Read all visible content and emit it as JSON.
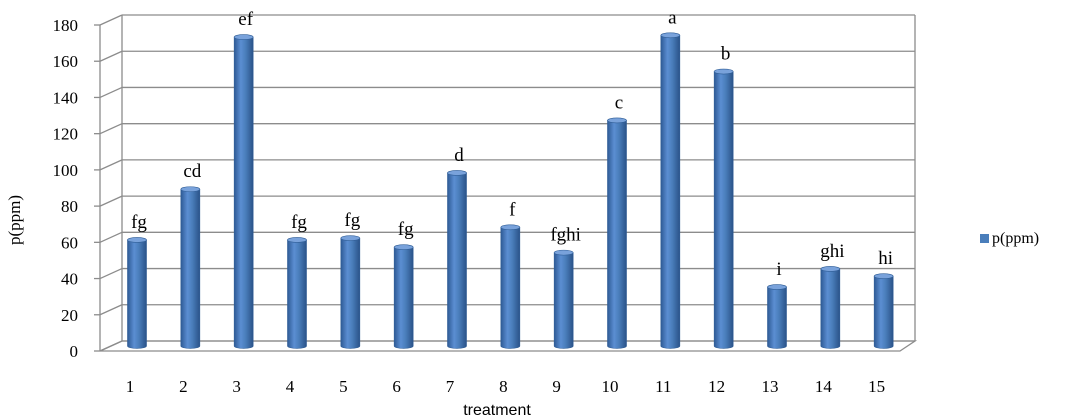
{
  "chart_data": {
    "type": "bar",
    "title": "",
    "xlabel": "treatment",
    "ylabel": "p(ppm)",
    "ylim": [
      0,
      180
    ],
    "yticks": [
      "0",
      "20",
      "40",
      "60",
      "80",
      "100",
      "120",
      "140",
      "160",
      "180"
    ],
    "grid": true,
    "legend_position": "right",
    "categories": [
      "1",
      "2",
      "3",
      "4",
      "5",
      "6",
      "7",
      "8",
      "9",
      "10",
      "11",
      "12",
      "13",
      "14",
      "15"
    ],
    "series": [
      {
        "name": "p(ppm)",
        "color": "#4A7EBB",
        "values": [
          58,
          86,
          170,
          58,
          59,
          54,
          95,
          65,
          51,
          124,
          171,
          151,
          32,
          42,
          38
        ],
        "data_labels": [
          "fg",
          "cd",
          "ef",
          "fg",
          "fg",
          "fg",
          "d",
          "f",
          "fghi",
          "c",
          "a",
          "b",
          "i",
          "ghi",
          "hi"
        ]
      }
    ]
  }
}
